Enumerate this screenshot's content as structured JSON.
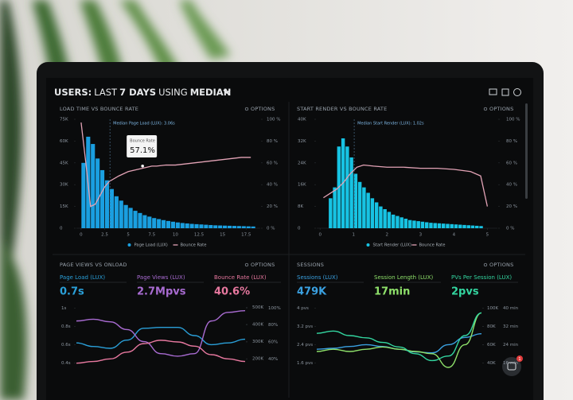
{
  "header": {
    "title": [
      "USERS:",
      "LAST",
      "7 DAYS",
      "USING",
      "MEDIAN"
    ],
    "badge": "1"
  },
  "chart_data": [
    {
      "type": "histogram",
      "title": "LOAD TIME VS BOUNCE RATE",
      "options": "OPTIONS",
      "bins": [
        0,
        0.5,
        1,
        1.5,
        2,
        2.5,
        3,
        3.5,
        4,
        4.5,
        5,
        5.5,
        6,
        6.5,
        7,
        7.5,
        8,
        8.5,
        9,
        9.5,
        10,
        10.5,
        11,
        11.5,
        12,
        12.5,
        13,
        13.5,
        14,
        14.5,
        15,
        15.5,
        16,
        16.5,
        17,
        17.5,
        18,
        18.5
      ],
      "series": [
        {
          "name": "Page Load (LUX)",
          "color": "#1a9fe0",
          "values": [
            45000,
            63000,
            58000,
            48000,
            40000,
            33000,
            27000,
            22000,
            19000,
            16000,
            14000,
            12000,
            10500,
            9000,
            8000,
            7000,
            6300,
            5600,
            5000,
            4500,
            4000,
            3600,
            3300,
            3000,
            2800,
            2600,
            2400,
            2200,
            2000,
            1900,
            1800,
            1700,
            1600,
            1500,
            1400,
            1300,
            1200
          ]
        },
        {
          "name": "Bounce Rate",
          "color": "#e3a3b6",
          "type": "line",
          "axis": "y2",
          "x": [
            0,
            0.5,
            1,
            1.5,
            2,
            2.5,
            3,
            4,
            5,
            6,
            7,
            7.5,
            8,
            9,
            10,
            11,
            12,
            13,
            14,
            15,
            16,
            17,
            17.5,
            18
          ],
          "values": [
            97,
            60,
            20,
            22,
            30,
            38,
            43,
            48,
            52,
            54,
            56,
            57,
            57,
            58,
            58,
            59,
            60,
            61,
            62,
            63,
            64,
            65,
            65,
            65
          ]
        }
      ],
      "xlim": [
        -0.5,
        19
      ],
      "xticks": [
        0,
        2.5,
        5,
        7.5,
        10,
        12.5,
        15,
        17.5
      ],
      "ylim": [
        0,
        75000
      ],
      "yticks": [
        0,
        {
          "value": 15000,
          "label": "15K"
        },
        {
          "value": 30000,
          "label": "30K"
        },
        {
          "value": 45000,
          "label": "45K"
        },
        {
          "value": 60000,
          "label": "60K"
        },
        {
          "value": 75000,
          "label": "75K"
        }
      ],
      "y2lim": [
        0,
        100
      ],
      "y2ticks": [
        {
          "value": 0,
          "label": "0 %"
        },
        {
          "value": 20,
          "label": "20 %"
        },
        {
          "value": 40,
          "label": "40 %"
        },
        {
          "value": 60,
          "label": "60 %"
        },
        {
          "value": 80,
          "label": "80 %"
        },
        {
          "value": 100,
          "label": "100 %"
        }
      ],
      "median": {
        "value": 3.06,
        "label": "Median Page Load (LUX): 3.06s"
      },
      "tooltip": {
        "title": "Bounce Rate",
        "value": 57.1,
        "label": "57.1%"
      }
    },
    {
      "type": "histogram",
      "title": "START RENDER VS BOUNCE RATE",
      "options": "OPTIONS",
      "bins": [
        0.25,
        0.375,
        0.5,
        0.625,
        0.75,
        0.875,
        1,
        1.125,
        1.25,
        1.375,
        1.5,
        1.625,
        1.75,
        1.875,
        2,
        2.125,
        2.25,
        2.375,
        2.5,
        2.625,
        2.75,
        2.875,
        3,
        3.125,
        3.25,
        3.375,
        3.5,
        3.625,
        3.75,
        3.875,
        4,
        4.125,
        4.25,
        4.375,
        4.5,
        4.625,
        4.75,
        4.875
      ],
      "series": [
        {
          "name": "Start Render (LUX)",
          "color": "#17c3e3",
          "values": [
            11000,
            15000,
            30000,
            33000,
            30000,
            26000,
            20000,
            17000,
            15000,
            13000,
            11000,
            9500,
            8000,
            7000,
            6000,
            5000,
            4500,
            4000,
            3500,
            3000,
            2800,
            2600,
            2400,
            2200,
            2000,
            1900,
            1800,
            1700,
            1600,
            1500,
            1400,
            1300,
            1200,
            1100,
            1000,
            900,
            800
          ]
        },
        {
          "name": "Bounce Rate",
          "color": "#e3a3b6",
          "type": "line",
          "axis": "y2",
          "x": [
            0.1,
            0.3,
            0.5,
            0.7,
            0.9,
            1.1,
            1.3,
            1.6,
            2,
            2.5,
            3,
            3.5,
            4,
            4.5,
            4.8,
            5
          ],
          "values": [
            28,
            32,
            36,
            42,
            50,
            56,
            58,
            57,
            56,
            56,
            55,
            55,
            54,
            52,
            48,
            20
          ]
        }
      ],
      "xlim": [
        -0.1,
        5.3
      ],
      "xticks": [
        0,
        1,
        2,
        3,
        4,
        5
      ],
      "ylim": [
        0,
        40000
      ],
      "yticks": [
        0,
        {
          "value": 8000,
          "label": "8K"
        },
        {
          "value": 16000,
          "label": "16K"
        },
        {
          "value": 24000,
          "label": "24K"
        },
        {
          "value": 32000,
          "label": "32K"
        },
        {
          "value": 40000,
          "label": "40K"
        }
      ],
      "y2lim": [
        0,
        100
      ],
      "y2ticks": [
        {
          "value": 0,
          "label": "0 %"
        },
        {
          "value": 20,
          "label": "20 %"
        },
        {
          "value": 40,
          "label": "40 %"
        },
        {
          "value": 60,
          "label": "60 %"
        },
        {
          "value": 80,
          "label": "80 %"
        },
        {
          "value": 100,
          "label": "100 %"
        }
      ],
      "median": {
        "value": 1.02,
        "label": "Median Start Render (LUX): 1.02s"
      }
    },
    {
      "type": "line",
      "title": "PAGE VIEWS VS ONLOAD",
      "options": "OPTIONS",
      "kpis": [
        {
          "label": "Page Load (LUX)",
          "value": "0.7s"
        },
        {
          "label": "Page Views (LUX)",
          "value": "2.7Mpvs"
        },
        {
          "label": "Bounce Rate (LUX)",
          "value": "40.6%"
        }
      ],
      "categories": [
        null,
        null,
        null,
        null,
        null,
        null,
        null,
        null,
        null,
        null,
        null
      ],
      "series": [
        {
          "name": "Page Load (LUX)",
          "color": "#2a9fd8",
          "axis": "y",
          "values": [
            0.62,
            0.58,
            0.56,
            0.65,
            0.78,
            0.79,
            0.79,
            0.7,
            0.6,
            0.62,
            0.66
          ]
        },
        {
          "name": "Page Views (LUX)",
          "color": "#a86bd1",
          "axis": "y2",
          "values": [
            420000,
            430000,
            415000,
            370000,
            300000,
            230000,
            215000,
            230000,
            420000,
            470000,
            480000
          ]
        },
        {
          "name": "Bounce Rate (LUX)",
          "color": "#e7789f",
          "axis": "y3",
          "values": [
            35,
            37,
            40,
            48,
            58,
            62,
            60,
            55,
            45,
            40,
            37
          ]
        }
      ],
      "ylim": [
        0.35,
        1.05
      ],
      "yticks": [
        {
          "value": 1,
          "label": "1s"
        },
        {
          "value": 0.8,
          "label": "0.8s"
        },
        {
          "value": 0.6,
          "label": "0.6s"
        },
        {
          "value": 0.4,
          "label": "0.4s"
        }
      ],
      "y2lim": [
        150000,
        520000
      ],
      "y2ticks": [
        {
          "value": 500000,
          "label": "500K"
        },
        {
          "value": 400000,
          "label": "400K"
        },
        {
          "value": 300000,
          "label": "300K"
        },
        {
          "value": 200000,
          "label": "200K"
        }
      ],
      "y3lim": [
        30,
        105
      ],
      "y3ticks": [
        {
          "value": 100,
          "label": "100%"
        },
        {
          "value": 80,
          "label": "80%"
        },
        {
          "value": 60,
          "label": "60%"
        },
        {
          "value": 40,
          "label": "40%"
        }
      ]
    },
    {
      "type": "line",
      "title": "SESSIONS",
      "options": "OPTIONS",
      "kpis": [
        {
          "label": "Sessions (LUX)",
          "value": "479K"
        },
        {
          "label": "Session Length (LUX)",
          "value": "17min"
        },
        {
          "label": "PVs Per Session (LUX)",
          "value": "2pvs"
        }
      ],
      "categories": [
        null,
        null,
        null,
        null,
        null,
        null,
        null,
        null,
        null,
        null,
        null
      ],
      "series": [
        {
          "name": "Sessions (LUX)",
          "color": "#3aa0e0",
          "axis": "y2",
          "values": [
            55000,
            56000,
            58000,
            60000,
            58000,
            55000,
            52000,
            51000,
            60000,
            68000,
            72000
          ]
        },
        {
          "name": "Session Length (LUX)",
          "color": "#8ee06a",
          "axis": "y3",
          "values": [
            21,
            22,
            21,
            22,
            23,
            22,
            21,
            20,
            14,
            24,
            38
          ]
        },
        {
          "name": "PVs Per Session (LUX)",
          "color": "#33d6a0",
          "axis": "y",
          "values": [
            2.9,
            3.0,
            2.8,
            2.7,
            2.5,
            2.3,
            2.0,
            1.7,
            1.9,
            2.8,
            3.8
          ]
        }
      ],
      "ylim": [
        1.4,
        4.2
      ],
      "yticks": [
        {
          "value": 4,
          "label": "4 pvs"
        },
        {
          "value": 3.2,
          "label": "3.2 pvs"
        },
        {
          "value": 2.4,
          "label": "2.4 pvs"
        },
        {
          "value": 1.6,
          "label": "1.6 pvs"
        }
      ],
      "y2lim": [
        35000,
        105000
      ],
      "y2ticks": [
        {
          "value": 100000,
          "label": "100K"
        },
        {
          "value": 80000,
          "label": "80K"
        },
        {
          "value": 60000,
          "label": "60K"
        },
        {
          "value": 40000,
          "label": "40K"
        }
      ],
      "y3lim": [
        14,
        42
      ],
      "y3ticks": [
        {
          "value": 40,
          "label": "40 min"
        },
        {
          "value": 32,
          "label": "32 min"
        },
        {
          "value": 24,
          "label": "24 min"
        },
        {
          "value": 16,
          "label": "16 min"
        }
      ]
    }
  ]
}
